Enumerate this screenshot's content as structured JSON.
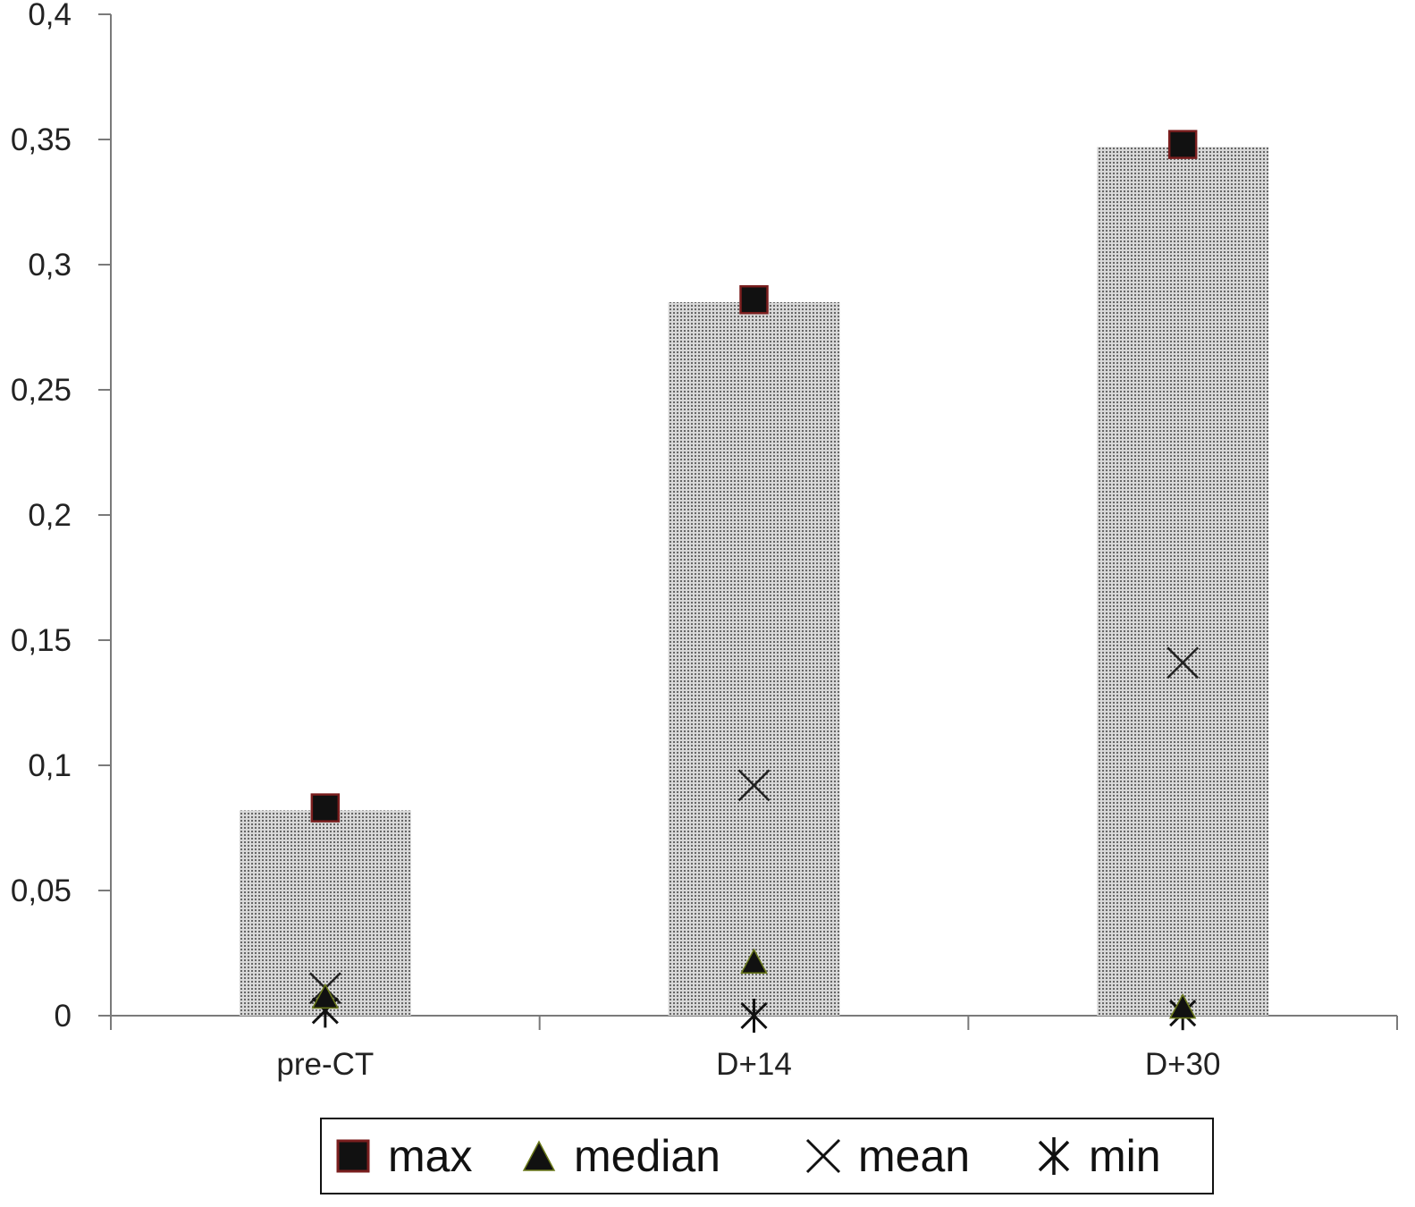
{
  "chart_data": {
    "type": "bar",
    "categories": [
      "pre-CT",
      "D+14",
      "D+30"
    ],
    "series": [
      {
        "name": "max",
        "values": [
          0.083,
          0.286,
          0.348
        ]
      },
      {
        "name": "median",
        "values": [
          0.007,
          0.021,
          0.003
        ]
      },
      {
        "name": "mean",
        "values": [
          0.011,
          0.092,
          0.141
        ]
      },
      {
        "name": "min",
        "values": [
          0.002,
          0.0,
          0.001
        ]
      }
    ],
    "bars": [
      0.082,
      0.285,
      0.347
    ],
    "ylim": [
      0,
      0.4
    ],
    "y_ticks": [
      "0",
      "0,05",
      "0,1",
      "0,15",
      "0,2",
      "0,25",
      "0,3",
      "0,35",
      "0,4"
    ],
    "title": "",
    "xlabel": "",
    "ylabel": "",
    "legend_position": "bottom",
    "grid": false,
    "colors": {
      "bar_fill": "#cfcfcf",
      "bar_dots": "#6a6a6a",
      "marker": "#111111",
      "max_outline": "#7a1e1e"
    }
  }
}
